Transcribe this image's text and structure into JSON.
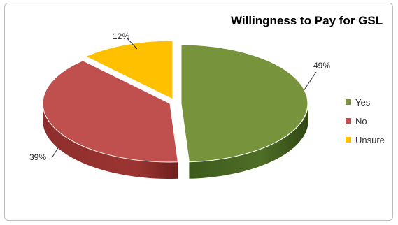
{
  "chart_data": {
    "type": "pie",
    "title": "Willingness to Pay for GSL",
    "categories": [
      "Yes",
      "No",
      "Unsure"
    ],
    "values": [
      49,
      39,
      12
    ],
    "labels": [
      "49%",
      "39%",
      "12%"
    ],
    "colors": [
      "#77933C",
      "#C0504D",
      "#FFC000"
    ],
    "legend_position": "right",
    "style": "3d-exploded"
  }
}
